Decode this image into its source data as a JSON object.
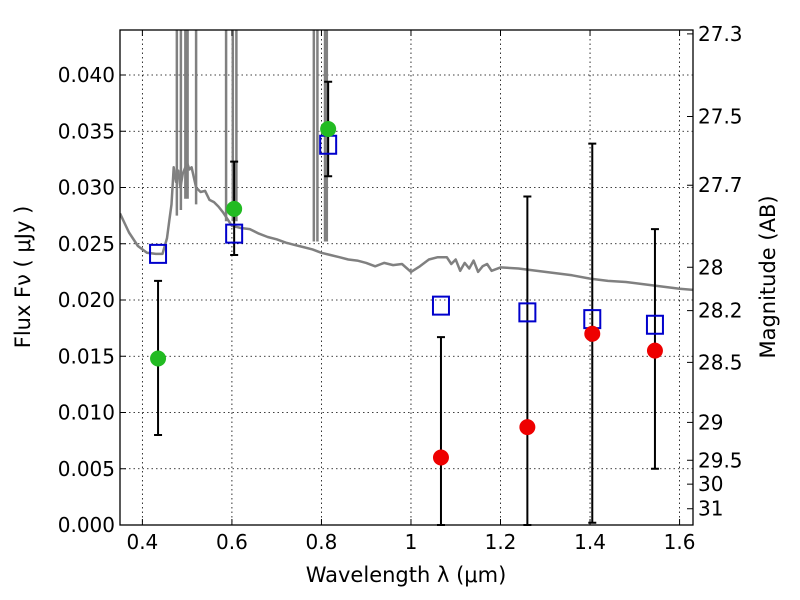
{
  "chart_data": {
    "type": "scatter",
    "xlabel": "Wavelength  λ (μm)",
    "ylabel": "Flux  Fν  ( μJy )",
    "ylabel_right": "Magnitude (AB)",
    "xlim": [
      0.35,
      1.63
    ],
    "ylim": [
      0.0,
      0.044
    ],
    "grid": true,
    "x_ticks": [
      0.4,
      0.6,
      0.8,
      1.0,
      1.2,
      1.4,
      1.6
    ],
    "x_tick_labels": [
      "0.4",
      "0.6",
      "0.8",
      "1",
      "1.2",
      "1.4",
      "1.6"
    ],
    "y_ticks": [
      0.0,
      0.005,
      0.01,
      0.015,
      0.02,
      0.025,
      0.03,
      0.035,
      0.04
    ],
    "y_tick_labels": [
      "0.000",
      "0.005",
      "0.010",
      "0.015",
      "0.020",
      "0.025",
      "0.030",
      "0.035",
      "0.040"
    ],
    "right_ticks": [
      {
        "mag": 27.3,
        "label": "27.3"
      },
      {
        "mag": 27.5,
        "label": "27.5"
      },
      {
        "mag": 27.7,
        "label": "27.7"
      },
      {
        "mag": 28.0,
        "label": "28"
      },
      {
        "mag": 28.2,
        "label": "28.2"
      },
      {
        "mag": 28.5,
        "label": "28.5"
      },
      {
        "mag": 29.0,
        "label": "29"
      },
      {
        "mag": 29.5,
        "label": "29.5"
      },
      {
        "mag": 30.0,
        "label": "30"
      },
      {
        "mag": 31.0,
        "label": "31"
      }
    ],
    "series": [
      {
        "kind": "errorbar",
        "color": "#000000",
        "points": [
          {
            "x": 0.435,
            "low": 0.008,
            "high": 0.0217
          },
          {
            "x": 0.605,
            "low": 0.024,
            "high": 0.0323
          },
          {
            "x": 0.815,
            "low": 0.031,
            "high": 0.0394
          },
          {
            "x": 1.067,
            "low": 0.0,
            "high": 0.0167
          },
          {
            "x": 1.26,
            "low": 0.0,
            "high": 0.0292
          },
          {
            "x": 1.405,
            "low": 0.0002,
            "high": 0.0339
          },
          {
            "x": 1.545,
            "low": 0.005,
            "high": 0.0263
          }
        ]
      },
      {
        "kind": "model_squares",
        "color": "#0000cc",
        "points": [
          {
            "x": 0.435,
            "y": 0.0241
          },
          {
            "x": 0.605,
            "y": 0.0259
          },
          {
            "x": 0.815,
            "y": 0.0338
          },
          {
            "x": 1.067,
            "y": 0.0195
          },
          {
            "x": 1.26,
            "y": 0.0189
          },
          {
            "x": 1.405,
            "y": 0.0183
          },
          {
            "x": 1.545,
            "y": 0.0178
          }
        ]
      },
      {
        "kind": "observed_circles",
        "color": "#22bb22",
        "points": [
          {
            "x": 0.435,
            "y": 0.0148
          },
          {
            "x": 0.605,
            "y": 0.0281
          },
          {
            "x": 0.815,
            "y": 0.0352
          }
        ]
      },
      {
        "kind": "observed_circles",
        "color": "#ee0000",
        "points": [
          {
            "x": 1.067,
            "y": 0.006
          },
          {
            "x": 1.26,
            "y": 0.0087
          },
          {
            "x": 1.405,
            "y": 0.017
          },
          {
            "x": 1.545,
            "y": 0.0155
          }
        ]
      },
      {
        "kind": "spectrum_line",
        "color": "#808080",
        "points": [
          [
            0.35,
            0.0277
          ],
          [
            0.37,
            0.026
          ],
          [
            0.39,
            0.0248
          ],
          [
            0.41,
            0.0242
          ],
          [
            0.43,
            0.0241
          ],
          [
            0.445,
            0.0241
          ],
          [
            0.455,
            0.0255
          ],
          [
            0.46,
            0.027
          ],
          [
            0.465,
            0.0285
          ],
          [
            0.47,
            0.0318
          ],
          [
            0.475,
            0.0305
          ],
          [
            0.48,
            0.0315
          ],
          [
            0.485,
            0.03
          ],
          [
            0.49,
            0.0312
          ],
          [
            0.5,
            0.0322
          ],
          [
            0.505,
            0.0316
          ],
          [
            0.51,
            0.0318
          ],
          [
            0.52,
            0.03
          ],
          [
            0.53,
            0.0296
          ],
          [
            0.54,
            0.0297
          ],
          [
            0.55,
            0.0289
          ],
          [
            0.56,
            0.0287
          ],
          [
            0.57,
            0.0283
          ],
          [
            0.58,
            0.0278
          ],
          [
            0.6,
            0.0266
          ],
          [
            0.62,
            0.0264
          ],
          [
            0.64,
            0.0263
          ],
          [
            0.66,
            0.0259
          ],
          [
            0.68,
            0.0256
          ],
          [
            0.7,
            0.0254
          ],
          [
            0.72,
            0.0251
          ],
          [
            0.74,
            0.0249
          ],
          [
            0.76,
            0.0247
          ],
          [
            0.78,
            0.0245
          ],
          [
            0.8,
            0.0242
          ],
          [
            0.82,
            0.024
          ],
          [
            0.84,
            0.0238
          ],
          [
            0.86,
            0.0236
          ],
          [
            0.88,
            0.0235
          ],
          [
            0.9,
            0.0233
          ],
          [
            0.92,
            0.023
          ],
          [
            0.94,
            0.0233
          ],
          [
            0.96,
            0.0231
          ],
          [
            0.98,
            0.0232
          ],
          [
            1.0,
            0.0225
          ],
          [
            1.02,
            0.023
          ],
          [
            1.04,
            0.0236
          ],
          [
            1.06,
            0.0238
          ],
          [
            1.08,
            0.0238
          ],
          [
            1.09,
            0.0232
          ],
          [
            1.1,
            0.0236
          ],
          [
            1.11,
            0.0226
          ],
          [
            1.12,
            0.0233
          ],
          [
            1.13,
            0.0228
          ],
          [
            1.14,
            0.0235
          ],
          [
            1.15,
            0.0225
          ],
          [
            1.16,
            0.023
          ],
          [
            1.17,
            0.0232
          ],
          [
            1.18,
            0.0226
          ],
          [
            1.2,
            0.0229
          ],
          [
            1.24,
            0.0228
          ],
          [
            1.28,
            0.0226
          ],
          [
            1.32,
            0.0224
          ],
          [
            1.36,
            0.0222
          ],
          [
            1.4,
            0.0219
          ],
          [
            1.44,
            0.0217
          ],
          [
            1.48,
            0.0216
          ],
          [
            1.52,
            0.0214
          ],
          [
            1.56,
            0.0212
          ],
          [
            1.6,
            0.021
          ],
          [
            1.63,
            0.0209
          ]
        ]
      },
      {
        "kind": "spectrum_spikes",
        "color": "#808080",
        "points": [
          {
            "x": 0.477,
            "base": 0.0275
          },
          {
            "x": 0.486,
            "base": 0.028
          },
          {
            "x": 0.496,
            "base": 0.029
          },
          {
            "x": 0.501,
            "base": 0.029
          },
          {
            "x": 0.52,
            "base": 0.0285
          },
          {
            "x": 0.587,
            "base": 0.027
          },
          {
            "x": 0.602,
            "base": 0.027
          },
          {
            "x": 0.61,
            "base": 0.027
          },
          {
            "x": 0.783,
            "base": 0.0252
          },
          {
            "x": 0.791,
            "base": 0.0252
          },
          {
            "x": 0.808,
            "base": 0.0252
          },
          {
            "x": 0.812,
            "base": 0.0252
          }
        ]
      }
    ]
  }
}
